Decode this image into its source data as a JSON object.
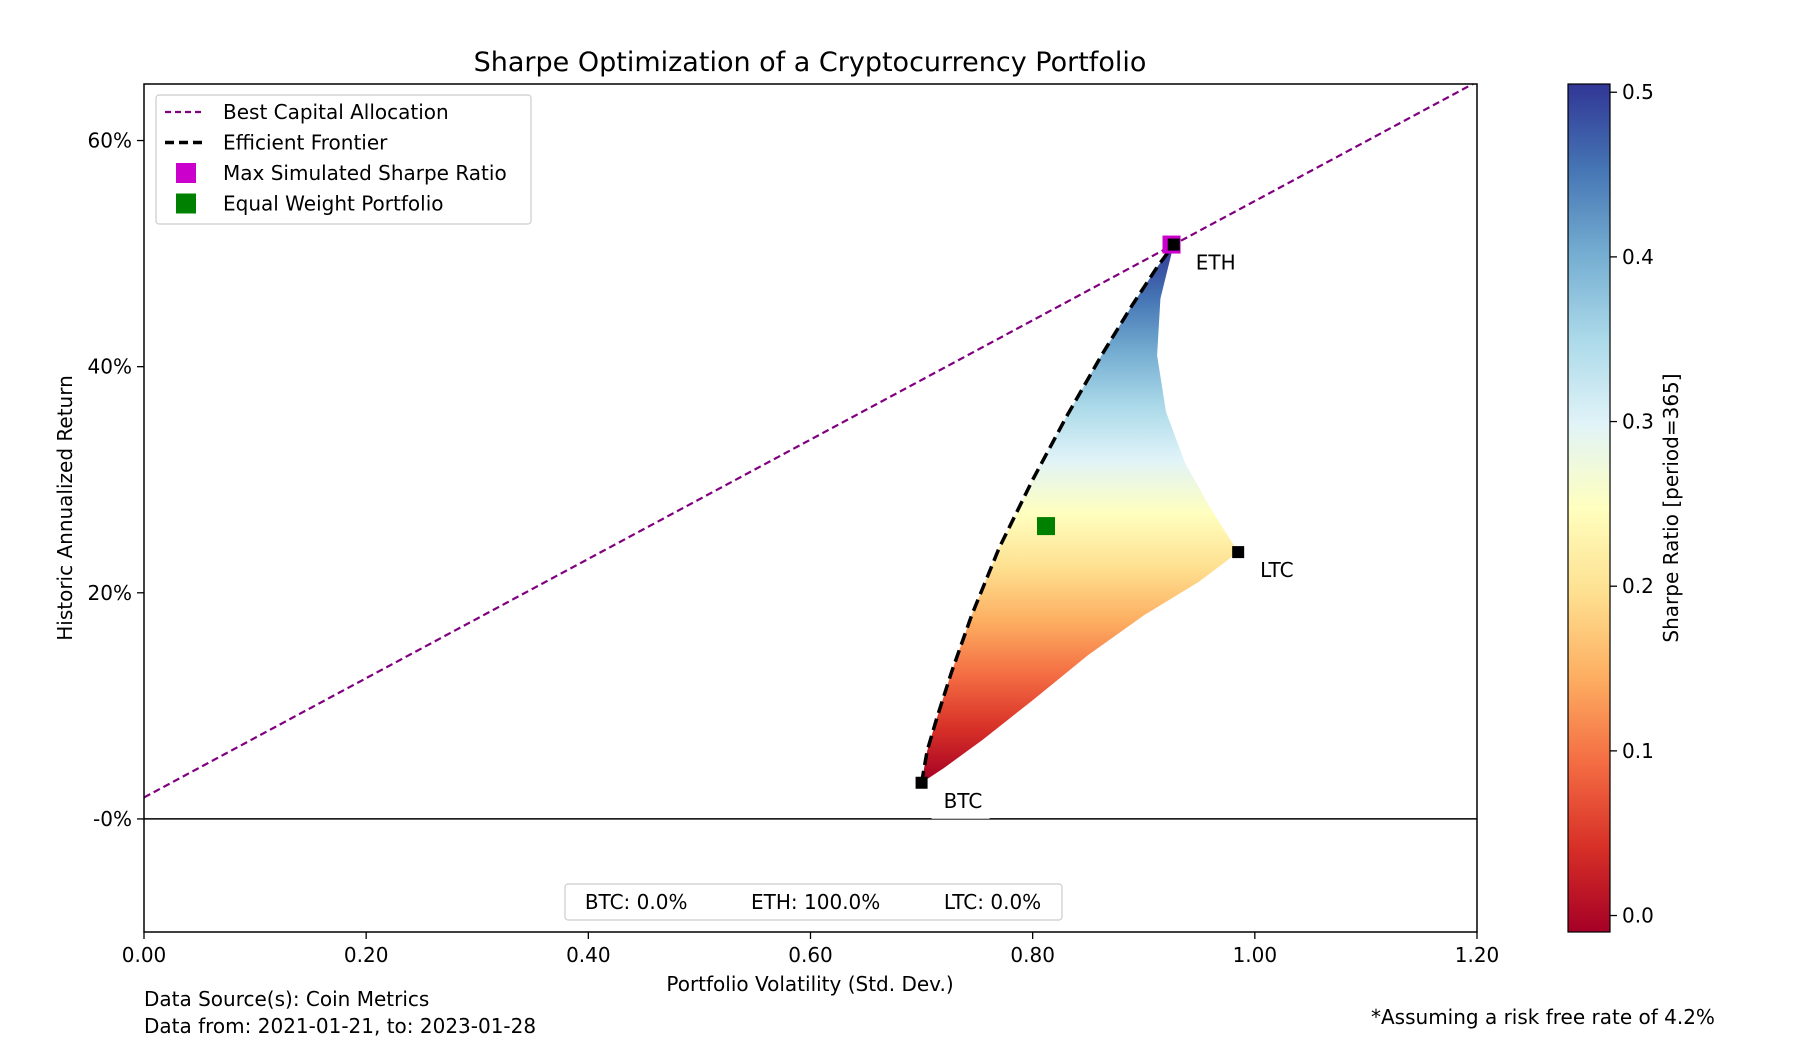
{
  "chart_data": {
    "type": "scatter",
    "title": "Sharpe Optimization of a Cryptocurrency Portfolio",
    "xlabel": "Portfolio Volatility (Std. Dev.)",
    "ylabel": "Historic Annualized Return",
    "xlim": [
      0.0,
      1.2
    ],
    "ylim": [
      -0.1,
      0.65
    ],
    "x_ticks": [
      0.0,
      0.2,
      0.4,
      0.6,
      0.8,
      1.0,
      1.2
    ],
    "x_tick_labels": [
      "0.00",
      "0.20",
      "0.40",
      "0.60",
      "0.80",
      "1.00",
      "1.20"
    ],
    "y_ticks": [
      0.0,
      0.2,
      0.4,
      0.6
    ],
    "y_tick_labels": [
      "-0%",
      "20%",
      "40%",
      "60%"
    ],
    "grid": false,
    "legend_placement": "upper-left",
    "risk_free_rate": 0.042,
    "legend": [
      {
        "label": "Best Capital Allocation",
        "marker": "dashed-line",
        "color": "#800080"
      },
      {
        "label": "Efficient Frontier",
        "marker": "dashed-line",
        "color": "#000000"
      },
      {
        "label": "Max Simulated Sharpe Ratio",
        "marker": "square",
        "color": "#cc00cc"
      },
      {
        "label": "Equal Weight Portfolio",
        "marker": "square",
        "color": "#008000"
      }
    ],
    "assets": [
      {
        "name": "BTC",
        "x": 0.7,
        "y": 0.032
      },
      {
        "name": "ETH",
        "x": 0.927,
        "y": 0.508
      },
      {
        "name": "LTC",
        "x": 0.985,
        "y": 0.236
      }
    ],
    "max_sharpe_point": {
      "x": 0.925,
      "y": 0.508
    },
    "equal_weight_point": {
      "x": 0.812,
      "y": 0.259
    },
    "capital_allocation_line": [
      {
        "x": 0.0,
        "y": 0.019
      },
      {
        "x": 1.2,
        "y": 0.652
      }
    ],
    "efficient_frontier": [
      {
        "x": 0.7,
        "y": 0.032
      },
      {
        "x": 0.705,
        "y": 0.06
      },
      {
        "x": 0.714,
        "y": 0.09
      },
      {
        "x": 0.727,
        "y": 0.13
      },
      {
        "x": 0.745,
        "y": 0.18
      },
      {
        "x": 0.77,
        "y": 0.24
      },
      {
        "x": 0.8,
        "y": 0.3
      },
      {
        "x": 0.83,
        "y": 0.355
      },
      {
        "x": 0.862,
        "y": 0.41
      },
      {
        "x": 0.89,
        "y": 0.455
      },
      {
        "x": 0.912,
        "y": 0.488
      },
      {
        "x": 0.927,
        "y": 0.508
      }
    ],
    "feasible_region_right_edge": [
      {
        "x": 0.927,
        "y": 0.508
      },
      {
        "x": 0.915,
        "y": 0.46
      },
      {
        "x": 0.912,
        "y": 0.41
      },
      {
        "x": 0.92,
        "y": 0.36
      },
      {
        "x": 0.937,
        "y": 0.315
      },
      {
        "x": 0.96,
        "y": 0.275
      },
      {
        "x": 0.985,
        "y": 0.236
      },
      {
        "x": 0.95,
        "y": 0.21
      },
      {
        "x": 0.9,
        "y": 0.18
      },
      {
        "x": 0.85,
        "y": 0.145
      },
      {
        "x": 0.8,
        "y": 0.105
      },
      {
        "x": 0.755,
        "y": 0.07
      },
      {
        "x": 0.72,
        "y": 0.045
      },
      {
        "x": 0.7,
        "y": 0.032
      }
    ],
    "colorbar": {
      "label": "Sharpe Ratio [period=365]",
      "range": [
        -0.01,
        0.505
      ],
      "ticks": [
        0.0,
        0.1,
        0.2,
        0.3,
        0.4,
        0.5
      ],
      "tick_labels": [
        "0.0",
        "0.1",
        "0.2",
        "0.3",
        "0.4",
        "0.5"
      ],
      "colormap": [
        "#a50026",
        "#d73027",
        "#f46d43",
        "#fdae61",
        "#fee090",
        "#ffffbf",
        "#e0f3f8",
        "#abd9e9",
        "#74add1",
        "#4575b4",
        "#313695"
      ]
    },
    "weights_box": "BTC: 0.0%          ETH: 100.0%          LTC: 0.0%"
  },
  "footer": {
    "source": "Data Source(s): Coin Metrics",
    "dates": "Data from: 2021-01-21, to: 2023-01-28",
    "note": "*Assuming a risk free rate of 4.2%"
  }
}
